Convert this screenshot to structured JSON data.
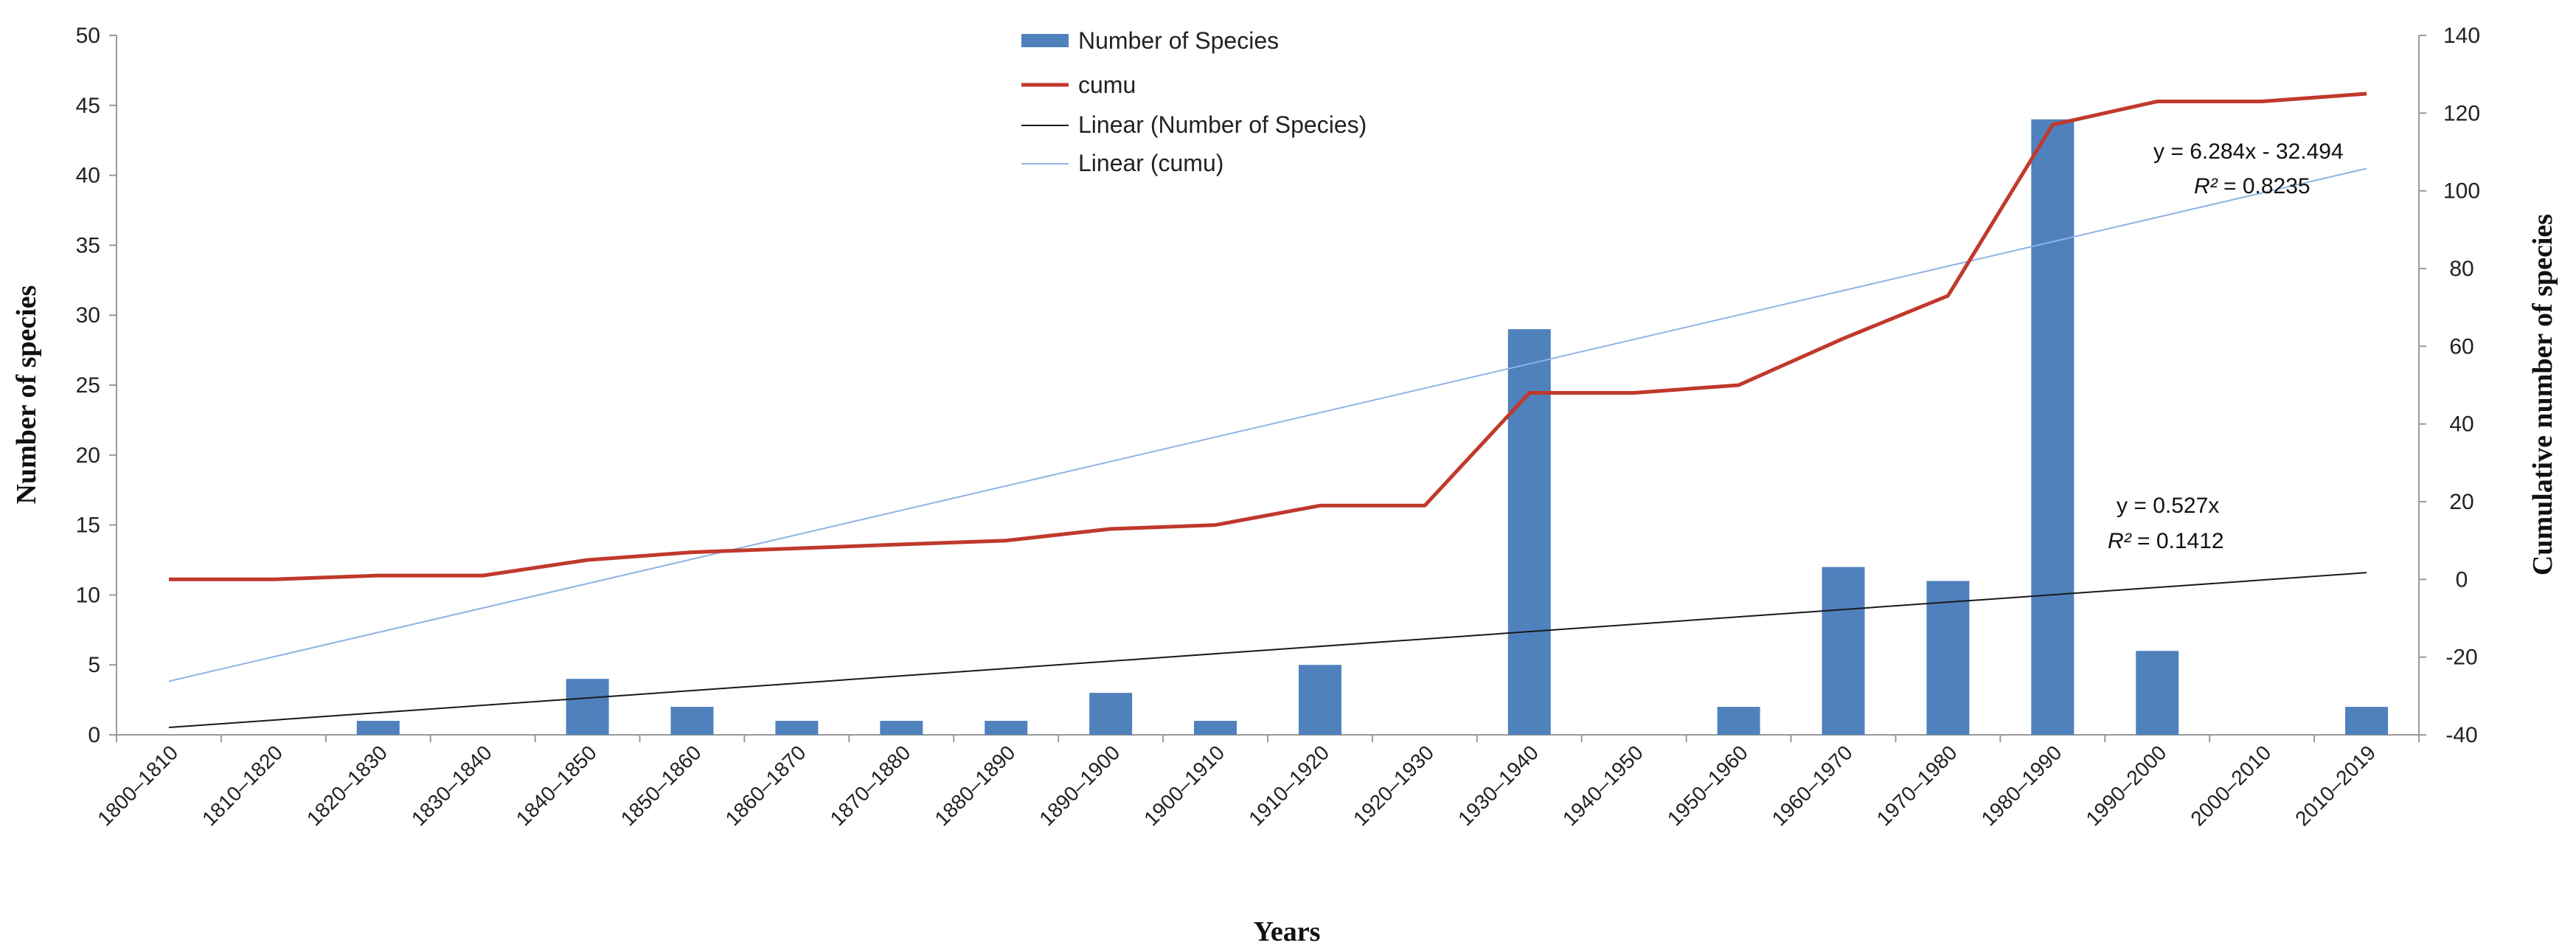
{
  "chart_data": {
    "type": "bar",
    "categories": [
      "1800–1810",
      "1810–1820",
      "1820–1830",
      "1830–1840",
      "1840–1850",
      "1850–1860",
      "1860–1870",
      "1870–1880",
      "1880–1890",
      "1890–1900",
      "1900–1910",
      "1910–1920",
      "1920–1930",
      "1930–1940",
      "1940–1950",
      "1950–1960",
      "1960–1970",
      "1970–1980",
      "1980–1990",
      "1990–2000",
      "2000–2010",
      "2010–2019"
    ],
    "series": [
      {
        "name": "Number of Species",
        "type": "bar",
        "axis": "left",
        "color": "#4f81bd",
        "values": [
          0,
          0,
          1,
          0,
          4,
          2,
          1,
          1,
          1,
          3,
          1,
          5,
          0,
          29,
          0,
          2,
          12,
          11,
          44,
          6,
          0,
          2
        ]
      },
      {
        "name": "cumu",
        "type": "line",
        "axis": "right",
        "color": "#c0392b",
        "values": [
          0,
          0,
          1,
          1,
          5,
          7,
          8,
          9,
          10,
          13,
          14,
          19,
          19,
          48,
          48,
          50,
          62,
          73,
          117,
          123,
          123,
          125
        ]
      },
      {
        "name": "Linear (Number of Species)",
        "type": "trendline",
        "axis": "left",
        "color": "#1a1a1a",
        "slope": 0.527,
        "intercept": 0
      },
      {
        "name": "Linear (cumu)",
        "type": "trendline",
        "axis": "right",
        "color": "#8fb4e3",
        "slope": 6.284,
        "intercept": -32.494
      }
    ],
    "xlabel": "Years",
    "ylabel": "Number of species",
    "y2label": "Cumulative number of species",
    "ylim": [
      0,
      50
    ],
    "yticks": [
      0,
      5,
      10,
      15,
      20,
      25,
      30,
      35,
      40,
      45,
      50
    ],
    "y2lim": [
      -40,
      140
    ],
    "y2ticks": [
      -40,
      -20,
      0,
      20,
      40,
      60,
      80,
      100,
      120,
      140
    ],
    "legend_position": "top-center",
    "annotations": {
      "cumu_eq": "y = 6.284x - 32.494",
      "cumu_r2_label": "R²",
      "cumu_r2_value": " = 0.8235",
      "species_eq": "y = 0.527x",
      "species_r2_label": "R²",
      "species_r2_value": " = 0.1412"
    }
  }
}
